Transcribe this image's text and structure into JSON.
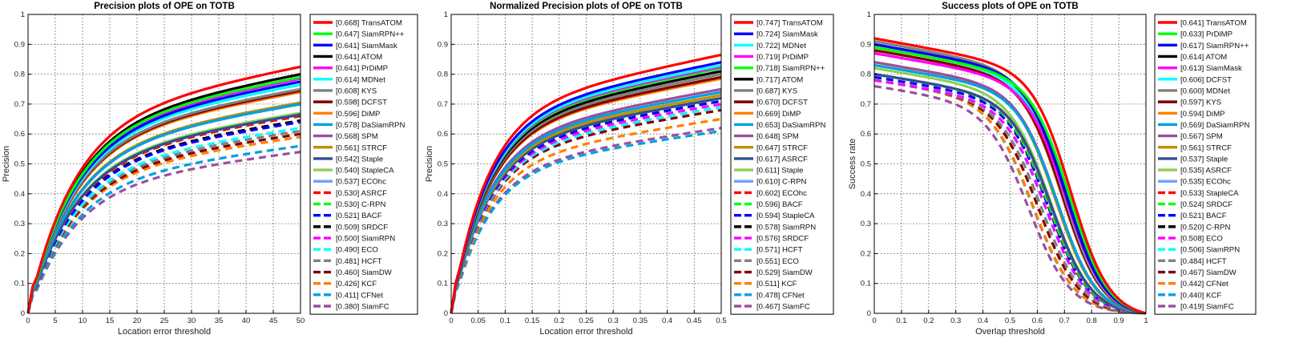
{
  "chart_data": [
    {
      "type": "line",
      "title": "Precision plots of OPE on TOTB",
      "xlabel": "Location error threshold",
      "ylabel": "Precision",
      "xlim": [
        0,
        50
      ],
      "ylim": [
        0,
        1
      ],
      "xticks": [
        0,
        5,
        10,
        15,
        20,
        25,
        30,
        35,
        40,
        45,
        50
      ],
      "yticks": [
        0,
        0.1,
        0.2,
        0.3,
        0.4,
        0.5,
        0.6,
        0.7,
        0.8,
        0.9,
        1
      ],
      "xtick_labels": [
        "0",
        "5",
        "10",
        "15",
        "20",
        "25",
        "30",
        "35",
        "40",
        "45",
        "50"
      ],
      "ytick_labels": [
        "0",
        "0.1",
        "0.2",
        "0.3",
        "0.4",
        "0.5",
        "0.6",
        "0.7",
        "0.8",
        "0.9",
        "1"
      ],
      "grid": true,
      "legend_position": "outside-right",
      "curve_shape": "rising",
      "series": [
        {
          "label": "[0.668] TransATOM",
          "name": "TransATOM",
          "score": 0.668,
          "color": "#ff0000",
          "style": "solid",
          "end": 0.825
        },
        {
          "label": "[0.647] SiamRPN++",
          "name": "SiamRPN++",
          "score": 0.647,
          "color": "#00ff00",
          "style": "solid",
          "end": 0.79
        },
        {
          "label": "[0.641] SiamMask",
          "name": "SiamMask",
          "score": 0.641,
          "color": "#0000ff",
          "style": "solid",
          "end": 0.775
        },
        {
          "label": "[0.641] ATOM",
          "name": "ATOM",
          "score": 0.641,
          "color": "#000000",
          "style": "solid",
          "end": 0.8
        },
        {
          "label": "[0.641] PrDiMP",
          "name": "PrDiMP",
          "score": 0.641,
          "color": "#ff00ff",
          "style": "solid",
          "end": 0.785
        },
        {
          "label": "[0.614] MDNet",
          "name": "MDNet",
          "score": 0.614,
          "color": "#00ffff",
          "style": "solid",
          "end": 0.765
        },
        {
          "label": "[0.608] KYS",
          "name": "KYS",
          "score": 0.608,
          "color": "#808080",
          "style": "solid",
          "end": 0.75
        },
        {
          "label": "[0.598] DCFST",
          "name": "DCFST",
          "score": 0.598,
          "color": "#800000",
          "style": "solid",
          "end": 0.745
        },
        {
          "label": "[0.596] DiMP",
          "name": "DiMP",
          "score": 0.596,
          "color": "#ff8000",
          "style": "solid",
          "end": 0.74
        },
        {
          "label": "[0.578] DaSiamRPN",
          "name": "DaSiamRPN",
          "score": 0.578,
          "color": "#00a0e0",
          "style": "solid",
          "end": 0.7
        },
        {
          "label": "[0.568] SPM",
          "name": "SPM",
          "score": 0.568,
          "color": "#9b4fa0",
          "style": "solid",
          "end": 0.7
        },
        {
          "label": "[0.561] STRCF",
          "name": "STRCF",
          "score": 0.561,
          "color": "#c09000",
          "style": "solid",
          "end": 0.705
        },
        {
          "label": "[0.542] Staple",
          "name": "Staple",
          "score": 0.542,
          "color": "#2f4f8f",
          "style": "solid",
          "end": 0.665
        },
        {
          "label": "[0.540] StapleCA",
          "name": "StapleCA",
          "score": 0.54,
          "color": "#8fcf50",
          "style": "solid",
          "end": 0.67
        },
        {
          "label": "[0.537] ECOhc",
          "name": "ECOhc",
          "score": 0.537,
          "color": "#6fa0ff",
          "style": "solid",
          "end": 0.665
        },
        {
          "label": "[0.530] ASRCF",
          "name": "ASRCF",
          "score": 0.53,
          "color": "#ff0000",
          "style": "dashed",
          "end": 0.66
        },
        {
          "label": "[0.530] C-RPN",
          "name": "C-RPN",
          "score": 0.53,
          "color": "#00ff00",
          "style": "dashed",
          "end": 0.67
        },
        {
          "label": "[0.521] BACF",
          "name": "BACF",
          "score": 0.521,
          "color": "#0000ff",
          "style": "dashed",
          "end": 0.64
        },
        {
          "label": "[0.509] SRDCF",
          "name": "SRDCF",
          "score": 0.509,
          "color": "#000000",
          "style": "dashed",
          "end": 0.645
        },
        {
          "label": "[0.500] SiamRPN",
          "name": "SiamRPN",
          "score": 0.5,
          "color": "#ff00ff",
          "style": "dashed",
          "end": 0.64
        },
        {
          "label": "[0.490] ECO",
          "name": "ECO",
          "score": 0.49,
          "color": "#00ffff",
          "style": "dashed",
          "end": 0.62
        },
        {
          "label": "[0.481] HCFT",
          "name": "HCFT",
          "score": 0.481,
          "color": "#808080",
          "style": "dashed",
          "end": 0.61
        },
        {
          "label": "[0.460] SiamDW",
          "name": "SiamDW",
          "score": 0.46,
          "color": "#800000",
          "style": "dashed",
          "end": 0.6
        },
        {
          "label": "[0.426] KCF",
          "name": "KCF",
          "score": 0.426,
          "color": "#ff8000",
          "style": "dashed",
          "end": 0.59
        },
        {
          "label": "[0.411] CFNet",
          "name": "CFNet",
          "score": 0.411,
          "color": "#00a0e0",
          "style": "dashed",
          "end": 0.56
        },
        {
          "label": "[0.380] SiamFC",
          "name": "SiamFC",
          "score": 0.38,
          "color": "#9b4fa0",
          "style": "dashed",
          "end": 0.54
        }
      ]
    },
    {
      "type": "line",
      "title": "Normalized Precision plots of OPE on TOTB",
      "xlabel": "Location error threshold",
      "ylabel": "Precision",
      "xlim": [
        0,
        0.5
      ],
      "ylim": [
        0,
        1
      ],
      "xticks": [
        0,
        0.05,
        0.1,
        0.15,
        0.2,
        0.25,
        0.3,
        0.35,
        0.4,
        0.45,
        0.5
      ],
      "yticks": [
        0,
        0.1,
        0.2,
        0.3,
        0.4,
        0.5,
        0.6,
        0.7,
        0.8,
        0.9,
        1
      ],
      "xtick_labels": [
        "0",
        "0.05",
        "0.1",
        "0.15",
        "0.2",
        "0.25",
        "0.3",
        "0.35",
        "0.4",
        "0.45",
        "0.5"
      ],
      "ytick_labels": [
        "0",
        "0.1",
        "0.2",
        "0.3",
        "0.4",
        "0.5",
        "0.6",
        "0.7",
        "0.8",
        "0.9",
        "1"
      ],
      "grid": true,
      "legend_position": "outside-right",
      "curve_shape": "rising",
      "series": [
        {
          "label": "[0.747] TransATOM",
          "name": "TransATOM",
          "score": 0.747,
          "color": "#ff0000",
          "style": "solid",
          "end": 0.865
        },
        {
          "label": "[0.724] SiamMask",
          "name": "SiamMask",
          "score": 0.724,
          "color": "#0000ff",
          "style": "solid",
          "end": 0.84
        },
        {
          "label": "[0.722] MDNet",
          "name": "MDNet",
          "score": 0.722,
          "color": "#00ffff",
          "style": "solid",
          "end": 0.83
        },
        {
          "label": "[0.719] PrDiMP",
          "name": "PrDiMP",
          "score": 0.719,
          "color": "#ff00ff",
          "style": "solid",
          "end": 0.825
        },
        {
          "label": "[0.718] SiamRPN++",
          "name": "SiamRPN++",
          "score": 0.718,
          "color": "#00ff00",
          "style": "solid",
          "end": 0.82
        },
        {
          "label": "[0.717] ATOM",
          "name": "ATOM",
          "score": 0.717,
          "color": "#000000",
          "style": "solid",
          "end": 0.81
        },
        {
          "label": "[0.687] KYS",
          "name": "KYS",
          "score": 0.687,
          "color": "#808080",
          "style": "solid",
          "end": 0.8
        },
        {
          "label": "[0.670] DCFST",
          "name": "DCFST",
          "score": 0.67,
          "color": "#800000",
          "style": "solid",
          "end": 0.79
        },
        {
          "label": "[0.669] DiMP",
          "name": "DiMP",
          "score": 0.669,
          "color": "#ff8000",
          "style": "solid",
          "end": 0.785
        },
        {
          "label": "[0.653] DaSiamRPN",
          "name": "DaSiamRPN",
          "score": 0.653,
          "color": "#00a0e0",
          "style": "solid",
          "end": 0.74
        },
        {
          "label": "[0.648] SPM",
          "name": "SPM",
          "score": 0.648,
          "color": "#9b4fa0",
          "style": "solid",
          "end": 0.75
        },
        {
          "label": "[0.647] STRCF",
          "name": "STRCF",
          "score": 0.647,
          "color": "#c09000",
          "style": "solid",
          "end": 0.73
        },
        {
          "label": "[0.617] ASRCF",
          "name": "ASRCF",
          "score": 0.617,
          "color": "#2f4f8f",
          "style": "solid",
          "end": 0.72
        },
        {
          "label": "[0.611] Staple",
          "name": "Staple",
          "score": 0.611,
          "color": "#8fcf50",
          "style": "solid",
          "end": 0.72
        },
        {
          "label": "[0.610] C-RPN",
          "name": "C-RPN",
          "score": 0.61,
          "color": "#6fa0ff",
          "style": "solid",
          "end": 0.72
        },
        {
          "label": "[0.602] ECOhc",
          "name": "ECOhc",
          "score": 0.602,
          "color": "#ff0000",
          "style": "dashed",
          "end": 0.72
        },
        {
          "label": "[0.596] BACF",
          "name": "BACF",
          "score": 0.596,
          "color": "#00ff00",
          "style": "dashed",
          "end": 0.72
        },
        {
          "label": "[0.594] StapleCA",
          "name": "StapleCA",
          "score": 0.594,
          "color": "#0000ff",
          "style": "dashed",
          "end": 0.71
        },
        {
          "label": "[0.578] SiamRPN",
          "name": "SiamRPN",
          "score": 0.578,
          "color": "#000000",
          "style": "dashed",
          "end": 0.71
        },
        {
          "label": "[0.576] SRDCF",
          "name": "SRDCF",
          "score": 0.576,
          "color": "#ff00ff",
          "style": "dashed",
          "end": 0.7
        },
        {
          "label": "[0.571] HCFT",
          "name": "HCFT",
          "score": 0.571,
          "color": "#00ffff",
          "style": "dashed",
          "end": 0.69
        },
        {
          "label": "[0.551] ECO",
          "name": "ECO",
          "score": 0.551,
          "color": "#808080",
          "style": "dashed",
          "end": 0.69
        },
        {
          "label": "[0.529] SiamDW",
          "name": "SiamDW",
          "score": 0.529,
          "color": "#800000",
          "style": "dashed",
          "end": 0.68
        },
        {
          "label": "[0.511] KCF",
          "name": "KCF",
          "score": 0.511,
          "color": "#ff8000",
          "style": "dashed",
          "end": 0.65
        },
        {
          "label": "[0.478] CFNet",
          "name": "CFNet",
          "score": 0.478,
          "color": "#00a0e0",
          "style": "dashed",
          "end": 0.61
        },
        {
          "label": "[0.467] SiamFC",
          "name": "SiamFC",
          "score": 0.467,
          "color": "#9b4fa0",
          "style": "dashed",
          "end": 0.62
        }
      ]
    },
    {
      "type": "line",
      "title": "Success plots of OPE on TOTB",
      "xlabel": "Overlap threshold",
      "ylabel": "Success rate",
      "xlim": [
        0,
        1
      ],
      "ylim": [
        0,
        1
      ],
      "xticks": [
        0,
        0.1,
        0.2,
        0.3,
        0.4,
        0.5,
        0.6,
        0.7,
        0.8,
        0.9,
        1
      ],
      "yticks": [
        0,
        0.1,
        0.2,
        0.3,
        0.4,
        0.5,
        0.6,
        0.7,
        0.8,
        0.9,
        1
      ],
      "xtick_labels": [
        "0",
        "0.1",
        "0.2",
        "0.3",
        "0.4",
        "0.5",
        "0.6",
        "0.7",
        "0.8",
        "0.9",
        "1"
      ],
      "ytick_labels": [
        "0",
        "0.1",
        "0.2",
        "0.3",
        "0.4",
        "0.5",
        "0.6",
        "0.7",
        "0.8",
        "0.9",
        "1"
      ],
      "grid": true,
      "legend_position": "outside-right",
      "curve_shape": "falling",
      "series": [
        {
          "label": "[0.641] TransATOM",
          "name": "TransATOM",
          "score": 0.641,
          "color": "#ff0000",
          "style": "solid",
          "start": 0.92
        },
        {
          "label": "[0.633] PrDiMP",
          "name": "PrDiMP",
          "score": 0.633,
          "color": "#00ff00",
          "style": "solid",
          "start": 0.89
        },
        {
          "label": "[0.617] SiamRPN++",
          "name": "SiamRPN++",
          "score": 0.617,
          "color": "#0000ff",
          "style": "solid",
          "start": 0.9
        },
        {
          "label": "[0.614] ATOM",
          "name": "ATOM",
          "score": 0.614,
          "color": "#000000",
          "style": "solid",
          "start": 0.9
        },
        {
          "label": "[0.613] SiamMask",
          "name": "SiamMask",
          "score": 0.613,
          "color": "#ff00ff",
          "style": "solid",
          "start": 0.87
        },
        {
          "label": "[0.606] DCFST",
          "name": "DCFST",
          "score": 0.606,
          "color": "#00ffff",
          "style": "solid",
          "start": 0.89
        },
        {
          "label": "[0.600] MDNet",
          "name": "MDNet",
          "score": 0.6,
          "color": "#808080",
          "style": "solid",
          "start": 0.91
        },
        {
          "label": "[0.597] KYS",
          "name": "KYS",
          "score": 0.597,
          "color": "#800000",
          "style": "solid",
          "start": 0.88
        },
        {
          "label": "[0.594] DiMP",
          "name": "DiMP",
          "score": 0.594,
          "color": "#ff8000",
          "style": "solid",
          "start": 0.88
        },
        {
          "label": "[0.569] DaSiamRPN",
          "name": "DaSiamRPN",
          "score": 0.569,
          "color": "#00a0e0",
          "style": "solid",
          "start": 0.83
        },
        {
          "label": "[0.567] SPM",
          "name": "SPM",
          "score": 0.567,
          "color": "#9b4fa0",
          "style": "solid",
          "start": 0.84
        },
        {
          "label": "[0.561] STRCF",
          "name": "STRCF",
          "score": 0.561,
          "color": "#c09000",
          "style": "solid",
          "start": 0.84
        },
        {
          "label": "[0.537] Staple",
          "name": "Staple",
          "score": 0.537,
          "color": "#2f4f8f",
          "style": "solid",
          "start": 0.8
        },
        {
          "label": "[0.535] ASRCF",
          "name": "ASRCF",
          "score": 0.535,
          "color": "#8fcf50",
          "style": "solid",
          "start": 0.82
        },
        {
          "label": "[0.535] ECOhc",
          "name": "ECOhc",
          "score": 0.535,
          "color": "#6fa0ff",
          "style": "solid",
          "start": 0.8
        },
        {
          "label": "[0.533] StapleCA",
          "name": "StapleCA",
          "score": 0.533,
          "color": "#ff0000",
          "style": "dashed",
          "start": 0.8
        },
        {
          "label": "[0.524] SRDCF",
          "name": "SRDCF",
          "score": 0.524,
          "color": "#00ff00",
          "style": "dashed",
          "start": 0.8
        },
        {
          "label": "[0.521] BACF",
          "name": "BACF",
          "score": 0.521,
          "color": "#0000ff",
          "style": "dashed",
          "start": 0.79
        },
        {
          "label": "[0.520] C-RPN",
          "name": "C-RPN",
          "score": 0.52,
          "color": "#000000",
          "style": "dashed",
          "start": 0.8
        },
        {
          "label": "[0.508] ECO",
          "name": "ECO",
          "score": 0.508,
          "color": "#ff00ff",
          "style": "dashed",
          "start": 0.78
        },
        {
          "label": "[0.506] SiamRPN",
          "name": "SiamRPN",
          "score": 0.506,
          "color": "#00ffff",
          "style": "dashed",
          "start": 0.78
        },
        {
          "label": "[0.484] HCFT",
          "name": "HCFT",
          "score": 0.484,
          "color": "#808080",
          "style": "dashed",
          "start": 0.78
        },
        {
          "label": "[0.467] SiamDW",
          "name": "SiamDW",
          "score": 0.467,
          "color": "#800000",
          "style": "dashed",
          "start": 0.78
        },
        {
          "label": "[0.442] CFNet",
          "name": "CFNet",
          "score": 0.442,
          "color": "#ff8000",
          "style": "dashed",
          "start": 0.78
        },
        {
          "label": "[0.440] KCF",
          "name": "KCF",
          "score": 0.44,
          "color": "#00a0e0",
          "style": "dashed",
          "start": 0.78
        },
        {
          "label": "[0.419] SiamFC",
          "name": "SiamFC",
          "score": 0.419,
          "color": "#9b4fa0",
          "style": "dashed",
          "start": 0.76
        }
      ]
    }
  ]
}
